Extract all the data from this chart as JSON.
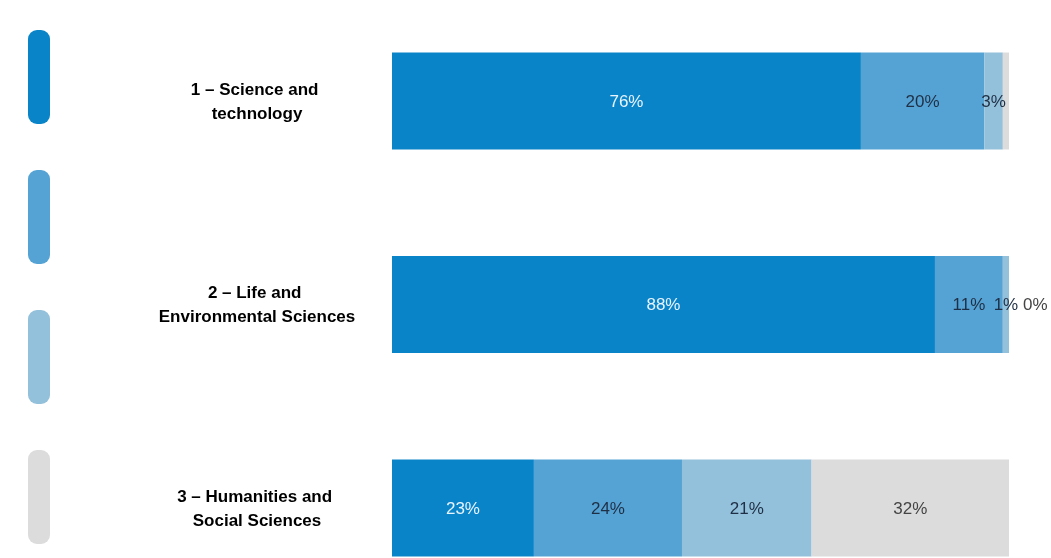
{
  "chart_data": {
    "type": "bar",
    "orientation": "horizontal",
    "stacked": true,
    "categories": [
      "1 – Science and technology",
      "2 – Life and Environmental Sciences",
      "3 – Humanities and Social Sciences"
    ],
    "series": [
      {
        "color": "#0a84c8",
        "values": [
          76,
          88,
          23
        ],
        "value_labels": [
          "76%",
          "88%",
          "23%"
        ]
      },
      {
        "color": "#55a3d4",
        "values": [
          20,
          11,
          24
        ],
        "value_labels": [
          "20%",
          "11%",
          "24%"
        ]
      },
      {
        "color": "#93c0da",
        "values": [
          3,
          1,
          21
        ],
        "value_labels": [
          "3%",
          "1%",
          "21%"
        ]
      },
      {
        "color": "#dcdcdc",
        "values": [
          1,
          0,
          32
        ],
        "value_labels": [
          null,
          "0%",
          "32%"
        ]
      }
    ],
    "xlim": [
      0,
      100
    ]
  }
}
